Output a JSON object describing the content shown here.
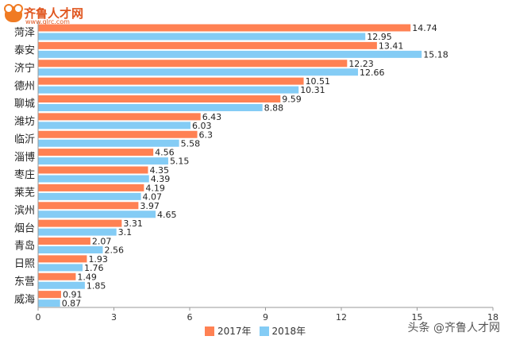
{
  "branding": {
    "site_name": "齐鲁人才网",
    "site_url": "www.qlrc.com",
    "watermark": "头条 @齐鲁人才网"
  },
  "chart_data": {
    "type": "bar",
    "orientation": "horizontal",
    "categories": [
      "菏泽",
      "泰安",
      "济宁",
      "德州",
      "聊城",
      "潍坊",
      "临沂",
      "淄博",
      "枣庄",
      "莱芜",
      "滨州",
      "烟台",
      "青岛",
      "日照",
      "东营",
      "威海"
    ],
    "series": [
      {
        "name": "2017年",
        "color": "#ff8153",
        "values": [
          14.74,
          13.41,
          12.23,
          10.51,
          9.59,
          6.43,
          6.3,
          4.56,
          4.35,
          4.19,
          3.97,
          3.31,
          2.07,
          1.93,
          1.49,
          0.91
        ],
        "labels": [
          "14.74",
          "13.41",
          "12.23",
          "10.51",
          "9.59",
          "6.43",
          "6.3",
          "4.56",
          "4.35",
          "4.19",
          "3.97",
          "3.31",
          "2.07",
          "1.93",
          "1.49",
          "0.91"
        ]
      },
      {
        "name": "2018年",
        "color": "#84ccf5",
        "values": [
          12.95,
          15.18,
          12.66,
          10.31,
          8.88,
          6.03,
          5.58,
          5.15,
          4.39,
          4.07,
          4.65,
          3.1,
          2.56,
          1.76,
          1.85,
          0.87
        ],
        "labels": [
          "12.95",
          "15.18",
          "12.66",
          "10.31",
          "8.88",
          "6.03",
          "5.58",
          "5.15",
          "4.39",
          "4.07",
          "4.65",
          "3.1",
          "2.56",
          "1.76",
          "1.85",
          "0.87"
        ]
      }
    ],
    "xlim": [
      0,
      18
    ],
    "xticks": [
      "0",
      "3",
      "6",
      "9",
      "12",
      "15",
      "18"
    ],
    "legend_position": "bottom-center",
    "grid": false
  }
}
